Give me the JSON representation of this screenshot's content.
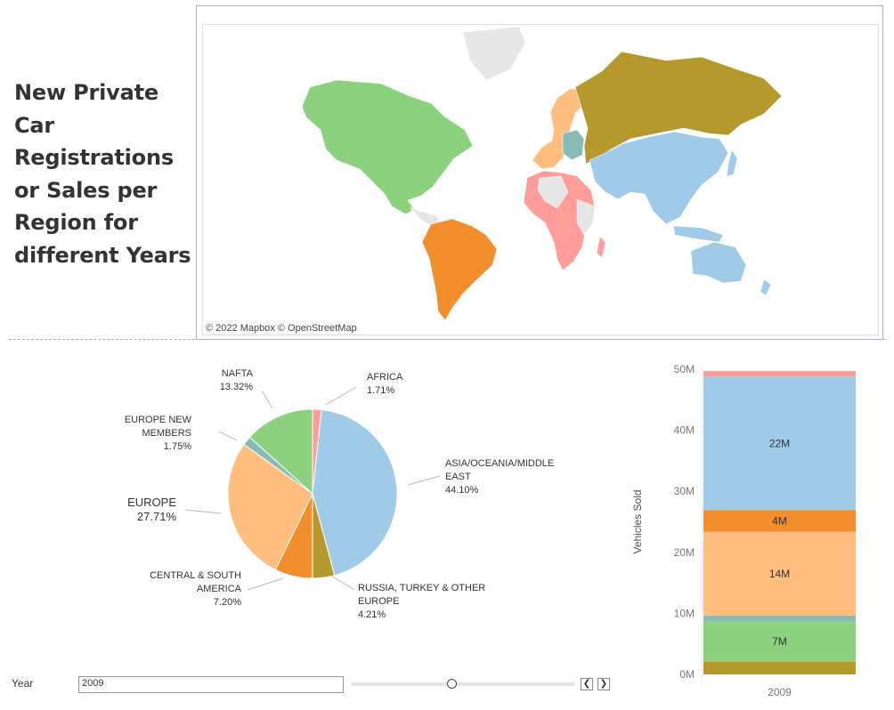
{
  "title": "New Private Car Registrations or Sales per Region for different Years",
  "map": {
    "credit": "© 2022 Mapbox © OpenStreetMap"
  },
  "filter": {
    "label": "Year",
    "value": "2009",
    "prev_icon": "chevron-left-icon",
    "next_icon": "chevron-right-icon"
  },
  "chart_data": [
    {
      "type": "pie",
      "slices": [
        {
          "name": "AFRICA",
          "percent": 1.71,
          "label": "1.71%",
          "color": "#ff9d9a"
        },
        {
          "name": "ASIA/OCEANIA/MIDDLE EAST",
          "percent": 44.1,
          "label": "44.10%",
          "color": "#a0cbe8"
        },
        {
          "name": "RUSSIA, TURKEY & OTHER EUROPE",
          "percent": 4.21,
          "label": "4.21%",
          "color": "#b6992d"
        },
        {
          "name": "CENTRAL & SOUTH AMERICA",
          "percent": 7.2,
          "label": "7.20%",
          "color": "#f28e2b"
        },
        {
          "name": "EUROPE",
          "percent": 27.71,
          "label": "27.71%",
          "color": "#ffbe7d"
        },
        {
          "name": "EUROPE NEW MEMBERS",
          "percent": 1.75,
          "label": "1.75%",
          "color": "#86bcb6"
        },
        {
          "name": "NAFTA",
          "percent": 13.32,
          "label": "13.32%",
          "color": "#8cd17d"
        }
      ]
    },
    {
      "type": "bar",
      "stacked": true,
      "categories": [
        "2009"
      ],
      "ylabel": "Vehicles Sold",
      "ylim": [
        0,
        50000000
      ],
      "yticks": [
        {
          "value": 0,
          "label": "0M"
        },
        {
          "value": 10000000,
          "label": "10M"
        },
        {
          "value": 20000000,
          "label": "20M"
        },
        {
          "value": 30000000,
          "label": "30M"
        },
        {
          "value": 40000000,
          "label": "40M"
        },
        {
          "value": 50000000,
          "label": "50M"
        }
      ],
      "series": [
        {
          "name": "RUSSIA, TURKEY & OTHER EUROPE",
          "value": 2100000,
          "label": "",
          "color": "#b6992d"
        },
        {
          "name": "NAFTA",
          "value": 6600000,
          "label": "7M",
          "color": "#8cd17d"
        },
        {
          "name": "EUROPE NEW MEMBERS",
          "value": 900000,
          "label": "",
          "color": "#86bcb6"
        },
        {
          "name": "EUROPE",
          "value": 13800000,
          "label": "14M",
          "color": "#ffbe7d"
        },
        {
          "name": "CENTRAL & SOUTH AMERICA",
          "value": 3500000,
          "label": "4M",
          "color": "#f28e2b"
        },
        {
          "name": "ASIA/OCEANIA/MIDDLE EAST",
          "value": 21900000,
          "label": "22M",
          "color": "#a0cbe8"
        },
        {
          "name": "AFRICA",
          "value": 900000,
          "label": "",
          "color": "#ff9d9a"
        }
      ]
    }
  ]
}
